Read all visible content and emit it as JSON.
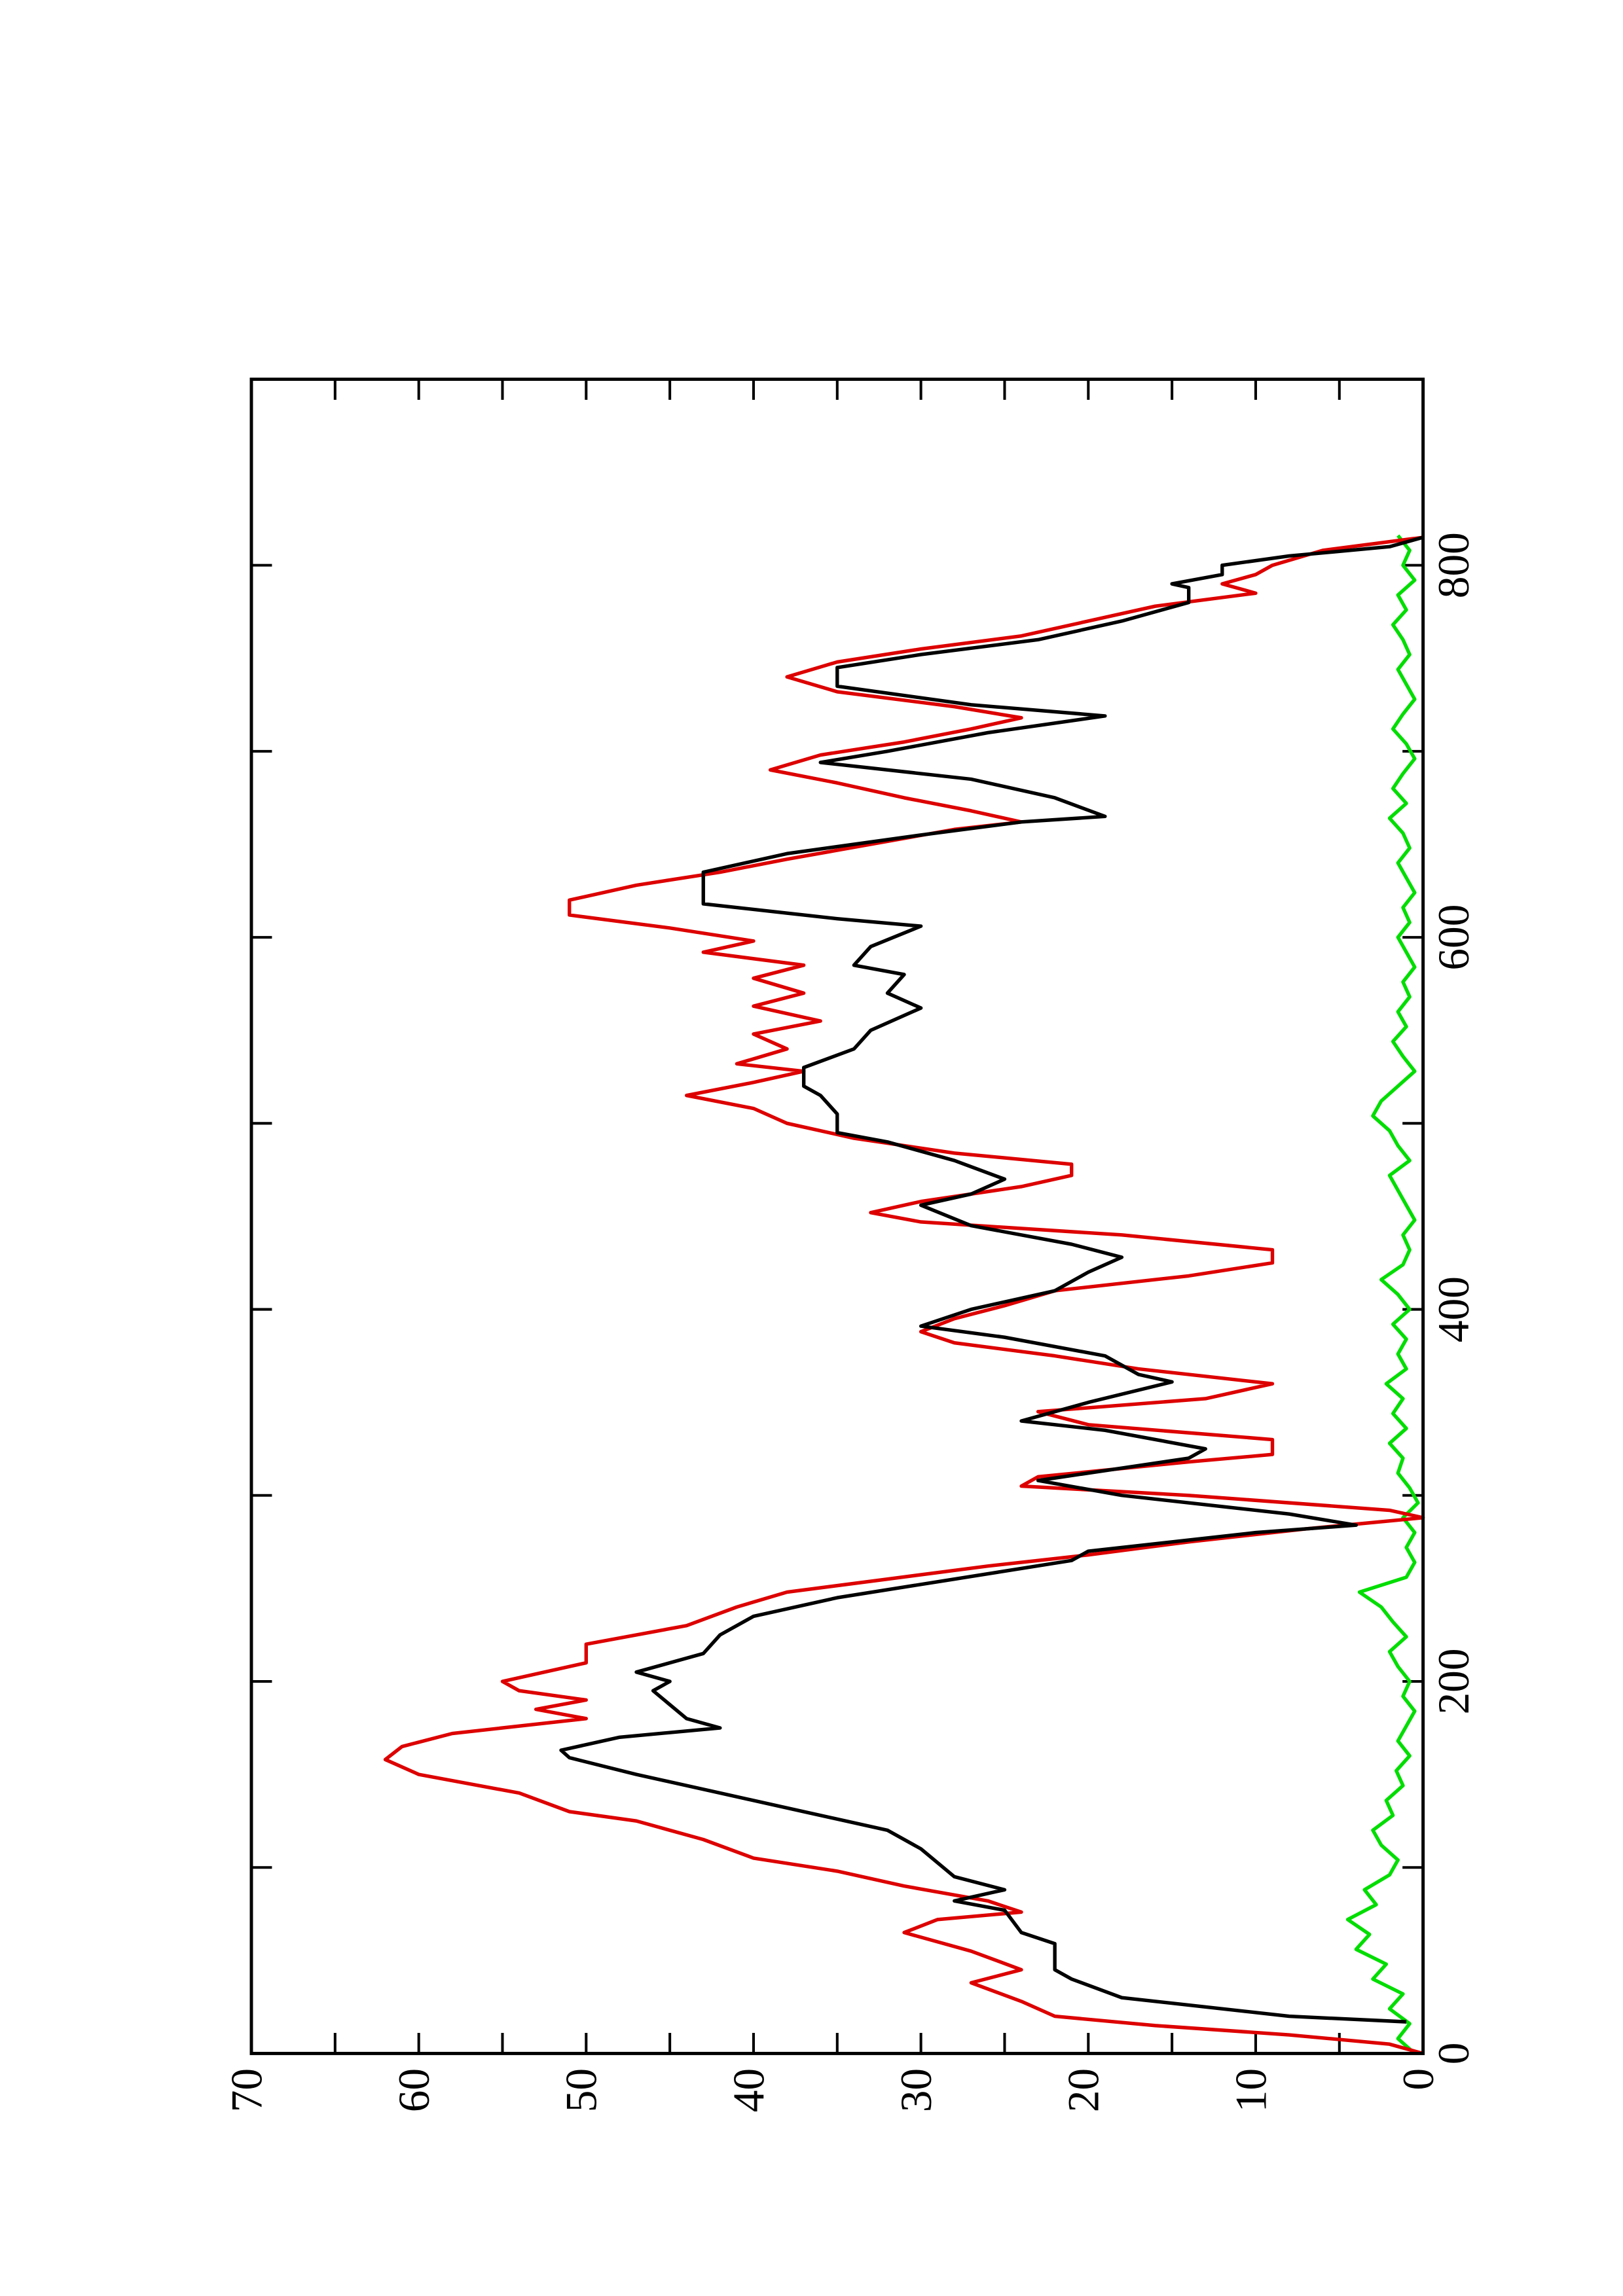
{
  "chart_data": {
    "type": "line",
    "xlim": [
      0,
      900
    ],
    "ylim": [
      0,
      70
    ],
    "xticks": [
      0,
      200,
      400,
      600,
      800
    ],
    "xminorticks": [
      100,
      300,
      500,
      700
    ],
    "yticks": [
      0,
      10,
      20,
      30,
      40,
      50,
      60,
      70
    ],
    "yminorticks": [
      5,
      15,
      25,
      35,
      45,
      55,
      65
    ],
    "rotation": -90,
    "series": [
      {
        "color": "#00dd00",
        "x": [
          0,
          8,
          16,
          24,
          32,
          40,
          48,
          56,
          64,
          72,
          80,
          88,
          96,
          104,
          112,
          120,
          128,
          136,
          144,
          152,
          160,
          168,
          176,
          184,
          192,
          200,
          208,
          216,
          224,
          232,
          240,
          248,
          256,
          264,
          272,
          280,
          288,
          296,
          304,
          312,
          320,
          328,
          336,
          344,
          352,
          360,
          368,
          376,
          384,
          392,
          400,
          408,
          416,
          424,
          432,
          440,
          448,
          456,
          464,
          472,
          480,
          488,
          496,
          504,
          512,
          520,
          528,
          536,
          544,
          552,
          560,
          568,
          576,
          584,
          592,
          600,
          608,
          616,
          624,
          632,
          640,
          648,
          656,
          664,
          672,
          680,
          688,
          696,
          704,
          712,
          720,
          728,
          736,
          744,
          752,
          760,
          768,
          776,
          784,
          792,
          800,
          808,
          816
        ],
        "values": [
          0.5,
          1.5,
          0.8,
          2.0,
          1.2,
          3.0,
          2.2,
          4.0,
          3.2,
          4.5,
          2.8,
          3.5,
          2.0,
          1.5,
          2.5,
          3.0,
          1.8,
          2.2,
          1.2,
          1.6,
          0.8,
          1.5,
          1.0,
          0.5,
          1.2,
          0.8,
          1.5,
          2.0,
          1.0,
          1.8,
          2.5,
          3.8,
          1.0,
          0.5,
          1.0,
          0.5,
          1.2,
          0.3,
          0.8,
          1.5,
          1.2,
          2.0,
          1.0,
          1.8,
          1.2,
          2.2,
          1.0,
          1.5,
          1.0,
          1.8,
          0.8,
          1.5,
          2.5,
          1.2,
          0.8,
          1.2,
          0.5,
          1.0,
          1.5,
          2.0,
          0.8,
          1.5,
          2.0,
          3.0,
          2.5,
          1.5,
          0.5,
          1.2,
          1.8,
          1.0,
          1.5,
          0.8,
          1.2,
          0.5,
          1.0,
          1.5,
          0.8,
          1.2,
          0.5,
          1.0,
          1.5,
          0.8,
          1.2,
          2.0,
          1.0,
          1.8,
          1.2,
          0.5,
          1.0,
          1.8,
          1.2,
          0.5,
          1.0,
          1.5,
          0.8,
          1.2,
          1.8,
          1.0,
          1.5,
          0.5,
          1.2,
          0.8,
          1.5
        ]
      },
      {
        "color": "#dd0000",
        "x": [
          0,
          5,
          10,
          15,
          20,
          28,
          38,
          45,
          55,
          65,
          72,
          76,
          82,
          90,
          98,
          105,
          115,
          125,
          130,
          140,
          150,
          158,
          165,
          172,
          180,
          185,
          190,
          195,
          200,
          210,
          220,
          230,
          240,
          248,
          255,
          262,
          268,
          275,
          282,
          288,
          292,
          300,
          305,
          310,
          318,
          322,
          330,
          338,
          345,
          352,
          360,
          368,
          375,
          382,
          388,
          395,
          402,
          410,
          418,
          425,
          432,
          440,
          447,
          452,
          458,
          466,
          472,
          478,
          484,
          492,
          500,
          508,
          515,
          522,
          528,
          532,
          540,
          548,
          555,
          563,
          570,
          578,
          585,
          592,
          598,
          605,
          612,
          620,
          628,
          635,
          642,
          650,
          658,
          662,
          668,
          675,
          683,
          690,
          698,
          705,
          712,
          718,
          724,
          732,
          740,
          748,
          755,
          762,
          770,
          778,
          785,
          790,
          795,
          800,
          808,
          815
        ],
        "values": [
          0,
          2,
          8,
          16,
          22,
          24,
          27,
          24,
          27,
          31,
          29,
          24,
          26,
          31,
          35,
          40,
          43,
          47,
          51,
          54,
          60,
          62,
          61,
          58,
          50,
          53,
          50,
          54,
          55,
          50,
          50,
          44,
          41,
          38,
          32,
          26,
          20,
          14,
          7,
          0,
          2,
          14,
          24,
          23,
          14,
          9,
          9,
          20,
          23,
          13,
          9,
          17,
          22,
          28,
          30,
          28,
          25,
          22,
          14,
          9,
          9,
          18,
          30,
          33,
          30,
          24,
          21,
          21,
          28,
          34,
          38,
          40,
          44,
          40,
          37,
          41,
          38,
          40,
          36,
          40,
          37,
          40,
          37,
          43,
          40,
          45,
          51,
          51,
          47,
          42,
          38,
          33,
          28,
          24,
          27,
          31,
          35,
          39,
          36,
          31,
          27,
          24,
          28,
          35,
          38,
          35,
          30,
          24,
          20,
          16,
          10,
          12,
          10,
          9,
          6,
          0
        ]
      },
      {
        "color": "#000000",
        "x": [
          17,
          20,
          30,
          40,
          45,
          59,
          65,
          77,
          82,
          88,
          95,
          110,
          120,
          130,
          140,
          150,
          159,
          163,
          170,
          175,
          180,
          195,
          200,
          205,
          215,
          225,
          235,
          245,
          255,
          265,
          270,
          280,
          284,
          290,
          300,
          308,
          312,
          320,
          325,
          335,
          340,
          350,
          361,
          365,
          375,
          385,
          391,
          400,
          410,
          420,
          428,
          435,
          445,
          456,
          462,
          470,
          480,
          490,
          495,
          505,
          515,
          520,
          530,
          540,
          550,
          562,
          570,
          580,
          585,
          595,
          606,
          610,
          618,
          630,
          635,
          645,
          655,
          662,
          665,
          675,
          685,
          694,
          700,
          710,
          719,
          725,
          735,
          740,
          745,
          752,
          760,
          770,
          780,
          788,
          790,
          795,
          800,
          805,
          810,
          815
        ],
        "values": [
          1,
          8,
          18,
          21,
          22,
          22,
          24,
          25,
          28,
          25,
          28,
          30,
          32,
          37,
          42,
          47,
          51,
          51.5,
          48,
          42,
          44,
          46,
          45,
          47,
          43,
          42,
          40,
          35,
          28,
          21,
          20,
          10,
          4,
          8,
          18,
          23,
          20,
          14,
          13,
          19,
          24,
          20,
          15,
          17,
          19,
          25,
          30,
          27,
          22,
          20,
          18,
          21,
          27,
          30,
          27,
          25,
          28,
          32,
          35,
          35,
          36,
          37,
          37,
          34,
          33,
          30,
          32,
          31,
          34,
          33,
          30,
          35,
          43,
          43,
          43,
          38,
          30,
          24,
          19,
          22,
          27,
          36,
          32,
          26,
          19,
          27,
          35,
          35,
          35,
          30,
          23,
          18,
          14,
          14,
          15,
          12,
          12,
          8,
          2,
          0
        ]
      }
    ]
  }
}
